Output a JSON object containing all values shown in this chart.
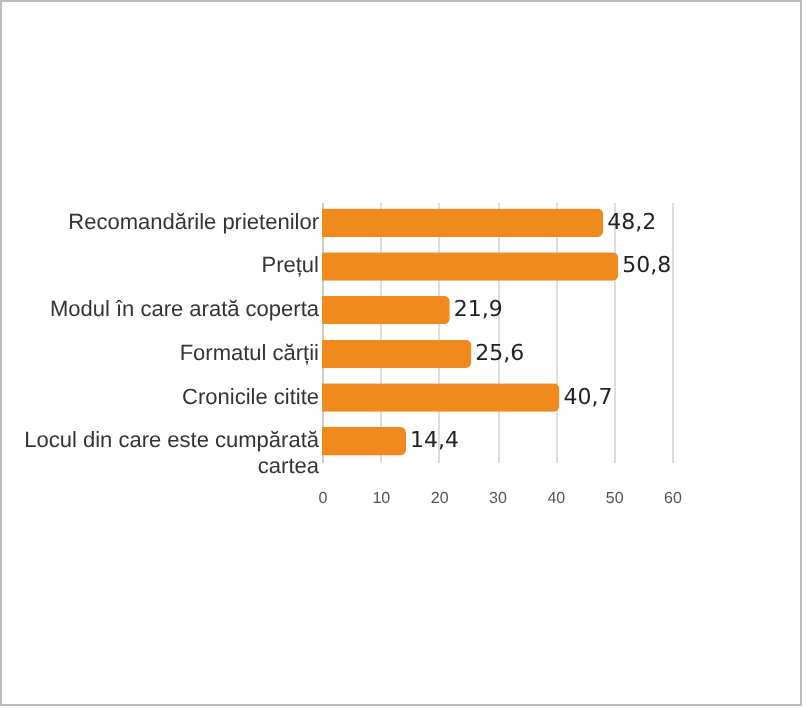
{
  "chart_data": {
    "type": "bar",
    "orientation": "horizontal",
    "categories": [
      "Recomandările prietenilor",
      "Prețul",
      "Modul în care arată coperta",
      "Formatul cărții",
      "Cronicile citite",
      "Locul din care este cumpărată cartea"
    ],
    "values": [
      48.2,
      50.8,
      21.9,
      25.6,
      40.7,
      14.4
    ],
    "value_labels": [
      "48,2",
      "50,8",
      "21,9",
      "25,6",
      "40,7",
      "14,4"
    ],
    "color": "#f08a1c",
    "xlim": [
      0,
      60
    ],
    "xticks": [
      0,
      10,
      20,
      30,
      40,
      50,
      60
    ],
    "grid": "x"
  }
}
